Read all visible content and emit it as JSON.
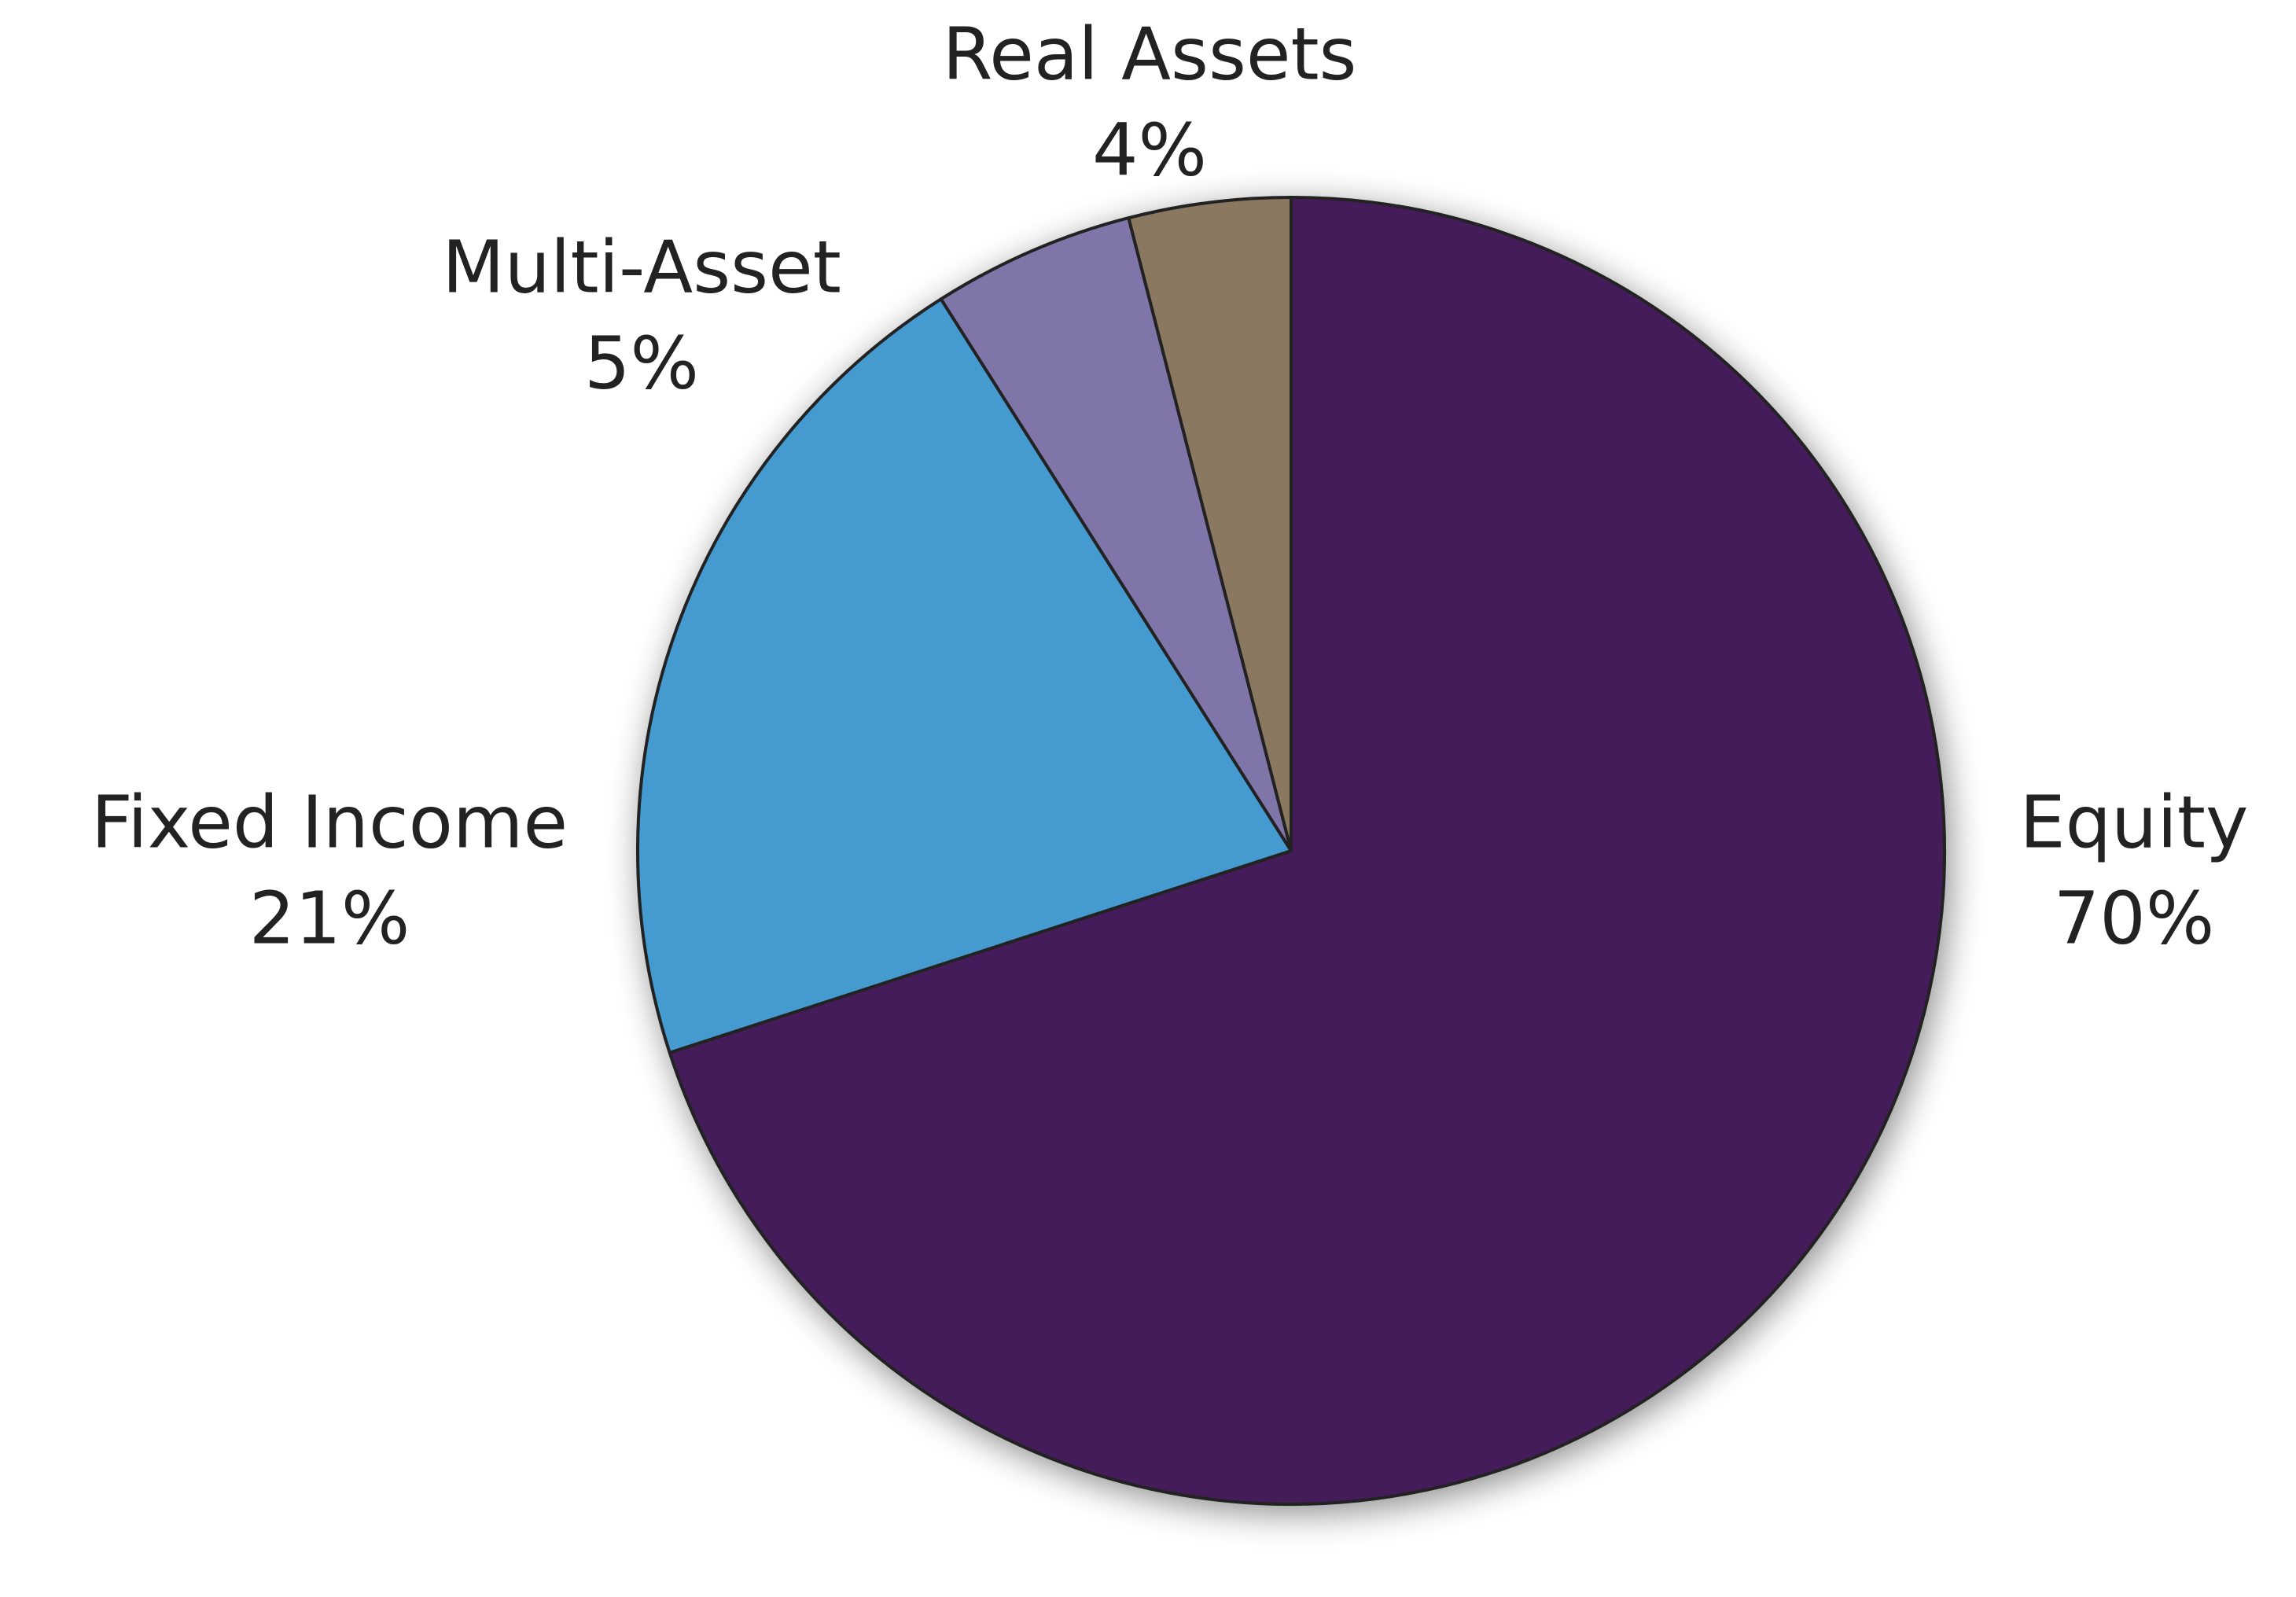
{
  "chart_data": {
    "type": "pie",
    "categories": [
      "Equity",
      "Fixed Income",
      "Multi-Asset",
      "Real Assets"
    ],
    "values": [
      70,
      21,
      5,
      4
    ],
    "value_labels": [
      "70%",
      "21%",
      "5%",
      "4%"
    ],
    "colors": [
      "#451e5a",
      "#449ad0",
      "#7f74a8",
      "#8a7860"
    ]
  }
}
